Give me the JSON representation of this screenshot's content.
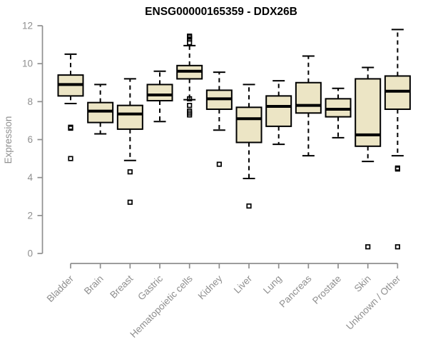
{
  "title": "ENSG00000165359 - DDX26B",
  "chart_data": {
    "type": "boxplot",
    "title": "ENSG00000165359 - DDX26B",
    "xlabel": "",
    "ylabel": "Expression",
    "ylim": [
      0,
      12
    ],
    "yticks": [
      0,
      2,
      4,
      6,
      8,
      10,
      12
    ],
    "grid": false,
    "legend": false,
    "categories": [
      "Bladder",
      "Brain",
      "Breast",
      "Gastric",
      "Hematopoietic cells",
      "Kidney",
      "Liver",
      "Lung",
      "Pancreas",
      "Prostate",
      "Skin",
      "Unknown / Other"
    ],
    "series": [
      {
        "category": "Bladder",
        "whisker_low": 7.9,
        "q1": 8.3,
        "median": 8.9,
        "q3": 9.4,
        "whisker_high": 10.5,
        "outliers": [
          6.65,
          6.6,
          5.0
        ]
      },
      {
        "category": "Brain",
        "whisker_low": 6.3,
        "q1": 6.9,
        "median": 7.5,
        "q3": 7.95,
        "whisker_high": 8.9,
        "outliers": []
      },
      {
        "category": "Breast",
        "whisker_low": 4.9,
        "q1": 6.55,
        "median": 7.35,
        "q3": 7.8,
        "whisker_high": 9.2,
        "outliers": [
          4.3,
          2.7
        ]
      },
      {
        "category": "Gastric",
        "whisker_low": 6.95,
        "q1": 8.05,
        "median": 8.35,
        "q3": 8.9,
        "whisker_high": 9.6,
        "outliers": []
      },
      {
        "category": "Hematopoietic cells",
        "whisker_low": 8.1,
        "q1": 9.2,
        "median": 9.6,
        "q3": 9.9,
        "whisker_high": 10.95,
        "outliers": [
          11.45,
          11.4,
          11.3,
          11.1,
          8.15,
          7.8,
          7.5,
          7.4,
          7.3
        ]
      },
      {
        "category": "Kidney",
        "whisker_low": 6.5,
        "q1": 7.6,
        "median": 8.15,
        "q3": 8.6,
        "whisker_high": 9.55,
        "outliers": [
          4.7
        ]
      },
      {
        "category": "Liver",
        "whisker_low": 3.95,
        "q1": 5.85,
        "median": 7.1,
        "q3": 7.7,
        "whisker_high": 8.9,
        "outliers": [
          2.5
        ]
      },
      {
        "category": "Lung",
        "whisker_low": 5.75,
        "q1": 6.7,
        "median": 7.75,
        "q3": 8.3,
        "whisker_high": 9.1,
        "outliers": []
      },
      {
        "category": "Pancreas",
        "whisker_low": 5.15,
        "q1": 7.4,
        "median": 7.8,
        "q3": 9.0,
        "whisker_high": 10.4,
        "outliers": []
      },
      {
        "category": "Prostate",
        "whisker_low": 6.1,
        "q1": 7.2,
        "median": 7.6,
        "q3": 8.15,
        "whisker_high": 8.7,
        "outliers": []
      },
      {
        "category": "Skin",
        "whisker_low": 4.85,
        "q1": 5.65,
        "median": 6.25,
        "q3": 9.2,
        "whisker_high": 9.8,
        "outliers": [
          0.35
        ]
      },
      {
        "category": "Unknown / Other",
        "whisker_low": 5.15,
        "q1": 7.6,
        "median": 8.55,
        "q3": 9.35,
        "whisker_high": 11.8,
        "outliers": [
          4.5,
          4.45,
          0.35
        ]
      }
    ],
    "colors": {
      "box_fill": "#ECE5C5",
      "box_border": "#000000",
      "median": "#000000",
      "whisker": "#000000",
      "outlier": "#000000",
      "axis": "#8f8f8f",
      "title": "#000000",
      "background": "#ffffff"
    }
  }
}
